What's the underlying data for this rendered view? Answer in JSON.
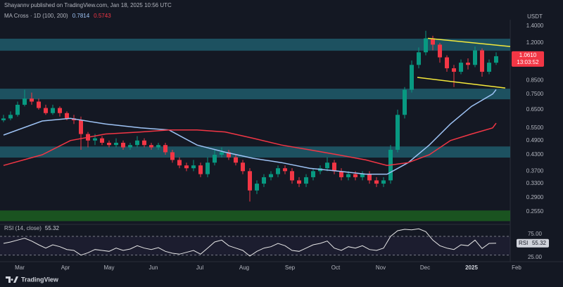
{
  "header": "Shayannv published on TradingView.com, Jan 18, 2025 10:56 UTC",
  "footer": "TradingView",
  "chart_data": [
    {
      "type": "candlestick",
      "title": "MA Cross · 1D (100, 200)",
      "currency": "USDT",
      "log_scale": true,
      "background": "#141823",
      "categories": [
        null,
        null,
        null,
        null,
        null,
        null,
        null,
        null,
        null,
        null,
        null,
        null,
        null,
        null,
        null,
        null,
        null,
        null,
        null,
        null,
        null,
        null,
        null,
        null,
        null,
        null,
        null,
        null,
        null,
        null,
        null,
        null,
        null,
        null,
        null,
        null,
        null,
        null,
        null,
        null,
        null,
        null,
        null,
        null,
        null,
        null,
        null,
        null,
        null,
        null,
        null,
        null,
        null,
        null,
        null,
        null,
        null,
        null,
        null,
        null,
        null,
        null,
        null,
        null,
        null,
        null,
        null,
        null,
        null,
        null,
        null
      ],
      "open": [
        0.59,
        0.6,
        0.62,
        0.68,
        0.72,
        0.7,
        0.66,
        0.63,
        0.66,
        0.63,
        0.6,
        0.59,
        0.52,
        0.49,
        0.5,
        0.48,
        0.47,
        0.48,
        0.46,
        0.47,
        0.49,
        0.47,
        0.46,
        0.47,
        0.44,
        0.41,
        0.39,
        0.38,
        0.39,
        0.36,
        0.4,
        0.43,
        0.44,
        0.42,
        0.4,
        0.37,
        0.31,
        0.33,
        0.35,
        0.36,
        0.38,
        0.37,
        0.34,
        0.33,
        0.35,
        0.37,
        0.38,
        0.4,
        0.37,
        0.35,
        0.36,
        0.35,
        0.36,
        0.34,
        0.33,
        0.34,
        0.45,
        0.62,
        0.78,
        0.98,
        1.1,
        1.25,
        1.18,
        1.05,
        0.95,
        0.92,
        1.0,
        0.98,
        1.12,
        0.92,
        1.0
      ],
      "high": [
        0.62,
        0.64,
        0.7,
        0.78,
        0.76,
        0.72,
        0.68,
        0.68,
        0.67,
        0.64,
        0.62,
        0.61,
        0.53,
        0.52,
        0.51,
        0.49,
        0.5,
        0.49,
        0.48,
        0.51,
        0.5,
        0.48,
        0.48,
        0.48,
        0.45,
        0.42,
        0.4,
        0.41,
        0.4,
        0.42,
        0.45,
        0.46,
        0.45,
        0.43,
        0.41,
        0.38,
        0.34,
        0.36,
        0.37,
        0.39,
        0.39,
        0.38,
        0.35,
        0.36,
        0.38,
        0.39,
        0.42,
        0.41,
        0.38,
        0.37,
        0.37,
        0.37,
        0.37,
        0.35,
        0.35,
        0.47,
        0.65,
        0.8,
        1.02,
        1.15,
        1.34,
        1.28,
        1.2,
        1.07,
        0.98,
        1.03,
        1.04,
        1.16,
        1.14,
        1.03,
        1.1
      ],
      "low": [
        0.58,
        0.59,
        0.61,
        0.67,
        0.68,
        0.65,
        0.62,
        0.62,
        0.61,
        0.59,
        0.57,
        0.45,
        0.46,
        0.47,
        0.47,
        0.46,
        0.46,
        0.45,
        0.45,
        0.46,
        0.46,
        0.45,
        0.45,
        0.43,
        0.4,
        0.38,
        0.37,
        0.37,
        0.35,
        0.35,
        0.39,
        0.42,
        0.41,
        0.39,
        0.36,
        0.28,
        0.3,
        0.32,
        0.34,
        0.35,
        0.36,
        0.33,
        0.32,
        0.32,
        0.34,
        0.36,
        0.37,
        0.36,
        0.34,
        0.34,
        0.34,
        0.34,
        0.33,
        0.32,
        0.32,
        0.33,
        0.44,
        0.6,
        0.76,
        0.95,
        1.07,
        1.12,
        1.0,
        0.92,
        0.8,
        0.9,
        0.94,
        0.96,
        0.88,
        0.9,
        0.98
      ],
      "close": [
        0.6,
        0.62,
        0.68,
        0.72,
        0.7,
        0.66,
        0.63,
        0.66,
        0.63,
        0.6,
        0.59,
        0.52,
        0.49,
        0.5,
        0.48,
        0.47,
        0.48,
        0.46,
        0.47,
        0.49,
        0.47,
        0.46,
        0.47,
        0.44,
        0.41,
        0.39,
        0.38,
        0.39,
        0.36,
        0.4,
        0.43,
        0.44,
        0.42,
        0.4,
        0.37,
        0.31,
        0.33,
        0.35,
        0.36,
        0.38,
        0.37,
        0.34,
        0.33,
        0.35,
        0.37,
        0.38,
        0.4,
        0.37,
        0.35,
        0.36,
        0.35,
        0.36,
        0.34,
        0.33,
        0.34,
        0.45,
        0.62,
        0.78,
        0.98,
        1.1,
        1.25,
        1.18,
        1.05,
        0.95,
        0.92,
        1.0,
        0.98,
        1.12,
        0.92,
        1.0,
        1.061
      ],
      "up_color": "#089981",
      "down_color": "#f23645",
      "moving_averages": [
        {
          "color": "#9ec3f5",
          "x": [
            0,
            5.5,
            9.5,
            14.5,
            19.5,
            23.5,
            27.5,
            31.5,
            35.5,
            39.5,
            43.5,
            47.5,
            51.5,
            54.5,
            57.5,
            60.5,
            63.5,
            66.5,
            69.5,
            70
          ],
          "values": [
            0.515,
            0.586,
            0.6,
            0.57,
            0.55,
            0.54,
            0.47,
            0.44,
            0.416,
            0.4,
            0.38,
            0.37,
            0.36,
            0.36,
            0.4,
            0.47,
            0.57,
            0.67,
            0.75,
            0.7814
          ]
        },
        {
          "color": "#f23645",
          "x": [
            0,
            5.5,
            9.5,
            14.5,
            19.5,
            23.5,
            27.5,
            31.5,
            35.5,
            39.5,
            43.5,
            47.5,
            51.5,
            54.5,
            57.5,
            60.5,
            63.5,
            66.5,
            69.5,
            70
          ],
          "values": [
            0.39,
            0.43,
            0.49,
            0.52,
            0.53,
            0.54,
            0.54,
            0.53,
            0.5,
            0.47,
            0.45,
            0.43,
            0.41,
            0.39,
            0.4,
            0.43,
            0.49,
            0.52,
            0.55,
            0.5743
          ]
        }
      ],
      "zones": [
        {
          "low": 1.116,
          "high": 1.246,
          "color": "#1f5c6b"
        },
        {
          "low": 0.715,
          "high": 0.788,
          "color": "#1f5c6b"
        },
        {
          "low": 0.419,
          "high": 0.464,
          "color": "#1f5c6b"
        },
        {
          "low": 0.234,
          "high": 0.258,
          "color": "#1b5e20"
        }
      ],
      "channel": {
        "color": "#f5e93b",
        "lines": [
          {
            "x": [
              60.3,
              72
            ],
            "values": [
              1.25,
              1.16
            ]
          },
          {
            "x": [
              58.8,
              71.3
            ],
            "values": [
              0.874,
              0.793
            ]
          }
        ]
      },
      "last_price": {
        "value": 1.061,
        "label": "1.0610"
      },
      "countdown": "13:03:52",
      "xlim": [
        -0.5,
        72
      ],
      "ylim": [
        0.2286,
        1.483
      ],
      "yticks": [
        {
          "value": 1.4,
          "label": "1.4000"
        },
        {
          "value": 1.2,
          "label": "1.2000"
        },
        {
          "value": 0.85,
          "label": "0.8500"
        },
        {
          "value": 0.75,
          "label": "0.7500"
        },
        {
          "value": 0.65,
          "label": "0.6500"
        },
        {
          "value": 0.55,
          "label": "0.5500"
        },
        {
          "value": 0.49,
          "label": "0.4900"
        },
        {
          "value": 0.43,
          "label": "0.4300"
        },
        {
          "value": 0.37,
          "label": "0.3700"
        },
        {
          "value": 0.33,
          "label": "0.3300"
        },
        {
          "value": 0.29,
          "label": "0.2900"
        },
        {
          "value": 0.255,
          "label": "0.2550"
        }
      ],
      "xticks": [
        {
          "value": 2.3,
          "label": "Mar"
        },
        {
          "value": 8.8,
          "label": "Apr"
        },
        {
          "value": 15,
          "label": "May"
        },
        {
          "value": 21.3,
          "label": "Jun"
        },
        {
          "value": 27.9,
          "label": "Jul"
        },
        {
          "value": 34.2,
          "label": "Aug"
        },
        {
          "value": 40.7,
          "label": "Sep"
        },
        {
          "value": 47.2,
          "label": "Oct"
        },
        {
          "value": 53.6,
          "label": "Nov"
        },
        {
          "value": 59.9,
          "label": "Dec"
        },
        {
          "value": 66.5,
          "label": "2025"
        },
        {
          "value": 72.9,
          "label": "Feb"
        }
      ]
    },
    {
      "type": "line",
      "title": "RSI (14, close)",
      "axis_label": "RSI",
      "color": "#e8e8e8",
      "band_color": "#787b86",
      "values": [
        55,
        58,
        62,
        66,
        60,
        52,
        45,
        52,
        48,
        42,
        40,
        30,
        35,
        42,
        40,
        38,
        45,
        40,
        43,
        50,
        45,
        42,
        46,
        38,
        34,
        32,
        36,
        40,
        32,
        45,
        58,
        62,
        50,
        45,
        40,
        28,
        38,
        45,
        48,
        55,
        50,
        40,
        38,
        45,
        52,
        55,
        60,
        45,
        40,
        48,
        45,
        50,
        42,
        40,
        45,
        70,
        82,
        85,
        84,
        86,
        80,
        62,
        50,
        45,
        42,
        52,
        50,
        62,
        44,
        55,
        55.32
      ],
      "bands": [
        30,
        70
      ],
      "ylim": [
        19,
        94
      ],
      "yticks": [
        {
          "value": 75,
          "label": "75.00"
        },
        {
          "value": 25,
          "label": "25.00"
        }
      ]
    }
  ]
}
